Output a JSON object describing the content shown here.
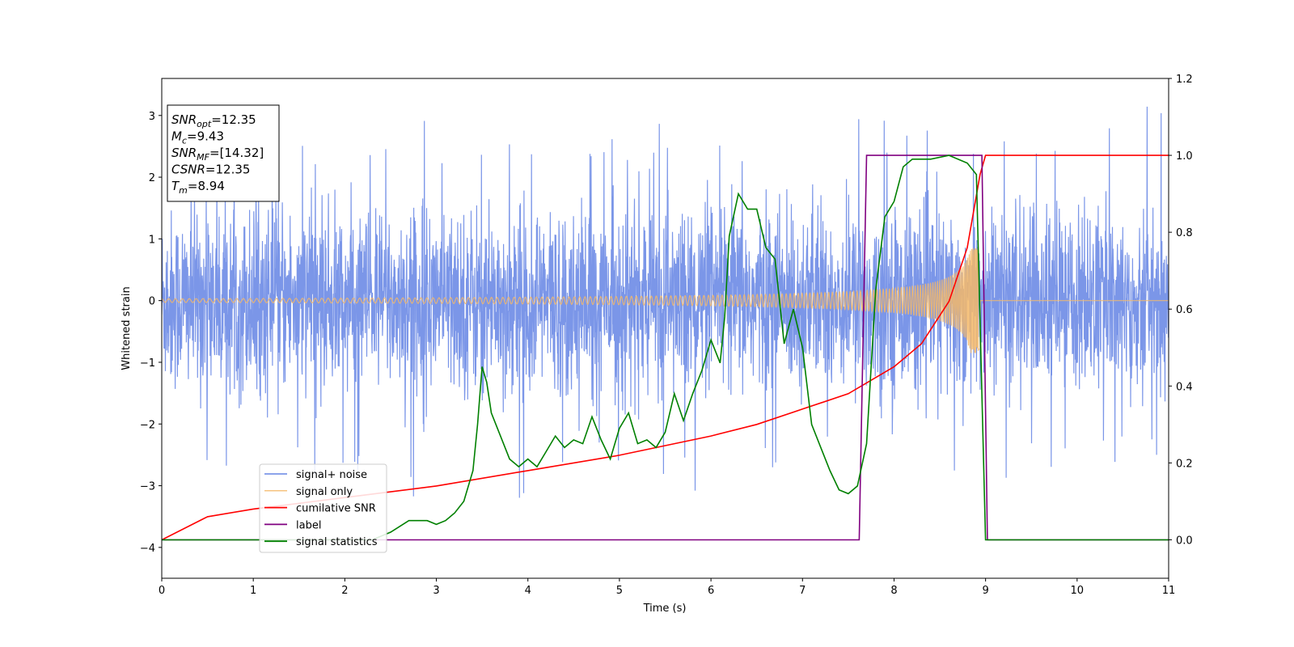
{
  "chart_data": {
    "type": "line",
    "xlabel": "Time (s)",
    "ylabel": "Whitened strain",
    "xlim": [
      0,
      11
    ],
    "ylim": [
      -4.5,
      3.6
    ],
    "y2lim": [
      -0.1,
      1.2
    ],
    "x_ticks": [
      "0",
      "1",
      "2",
      "3",
      "4",
      "5",
      "6",
      "7",
      "8",
      "9",
      "10",
      "11"
    ],
    "y_ticks": [
      "3",
      "2",
      "1",
      "0",
      "−1",
      "−2",
      "−3",
      "−4"
    ],
    "y2_ticks": [
      "1.2",
      "1.0",
      "0.8",
      "0.6",
      "0.4",
      "0.2",
      "0.0"
    ],
    "info_box": [
      {
        "base": "SNR",
        "sub": "opt",
        "value": "=12.35"
      },
      {
        "base": "M",
        "sub": "c",
        "value": "=9.43"
      },
      {
        "base": "SNR",
        "sub": "MF",
        "value": "=[14.32]"
      },
      {
        "base": "CSNR",
        "sub": "",
        "value": "=12.35"
      },
      {
        "base": "T",
        "sub": "m",
        "value": "=8.94"
      }
    ],
    "legend_placement": "lower-left",
    "series": [
      {
        "name": "signal+ noise",
        "color": "#7b96e8",
        "axis": "left",
        "description": "gaussian noise, amplitude ~1.6 with spikes up to ~3.2"
      },
      {
        "name": "signal only",
        "color": "#f5b968",
        "axis": "left",
        "chirp": {
          "start": 0,
          "end": 8.94,
          "amp_start": 0.03,
          "amp_end": 0.85
        }
      },
      {
        "name": "cumilative SNR",
        "color": "#ff0000",
        "axis": "right",
        "x": [
          0,
          0.5,
          1,
          2,
          3,
          4,
          5,
          6,
          6.5,
          7,
          7.5,
          8,
          8.3,
          8.6,
          8.8,
          8.94,
          9,
          11
        ],
        "y": [
          0.0,
          0.06,
          0.08,
          0.11,
          0.14,
          0.18,
          0.22,
          0.27,
          0.3,
          0.34,
          0.38,
          0.45,
          0.51,
          0.62,
          0.76,
          0.95,
          1.0,
          1.0
        ]
      },
      {
        "name": "label",
        "color": "#800080",
        "axis": "right",
        "x": [
          0,
          7.62,
          7.7,
          8.96,
          9.02,
          11
        ],
        "y": [
          0,
          0,
          1,
          1,
          0,
          0
        ]
      },
      {
        "name": "signal statistics",
        "color": "#008000",
        "axis": "right",
        "x": [
          0,
          0.5,
          1,
          1.5,
          2,
          2.3,
          2.5,
          2.7,
          2.9,
          3.0,
          3.1,
          3.2,
          3.3,
          3.4,
          3.45,
          3.5,
          3.55,
          3.6,
          3.7,
          3.8,
          3.9,
          4.0,
          4.1,
          4.2,
          4.3,
          4.4,
          4.5,
          4.6,
          4.7,
          4.8,
          4.9,
          5.0,
          5.1,
          5.2,
          5.3,
          5.4,
          5.5,
          5.6,
          5.7,
          5.8,
          5.9,
          6.0,
          6.1,
          6.15,
          6.2,
          6.3,
          6.4,
          6.5,
          6.6,
          6.7,
          6.8,
          6.9,
          7.0,
          7.1,
          7.2,
          7.3,
          7.4,
          7.5,
          7.6,
          7.7,
          7.8,
          7.9,
          8.0,
          8.1,
          8.2,
          8.4,
          8.6,
          8.8,
          8.9,
          9.0,
          9.5,
          10,
          11
        ],
        "y": [
          0.0,
          0.0,
          0.0,
          0.0,
          0.0,
          0.0,
          0.02,
          0.05,
          0.05,
          0.04,
          0.05,
          0.07,
          0.1,
          0.18,
          0.3,
          0.45,
          0.41,
          0.33,
          0.27,
          0.21,
          0.19,
          0.21,
          0.19,
          0.23,
          0.27,
          0.24,
          0.26,
          0.25,
          0.32,
          0.26,
          0.21,
          0.29,
          0.33,
          0.25,
          0.26,
          0.24,
          0.28,
          0.38,
          0.31,
          0.38,
          0.44,
          0.52,
          0.46,
          0.58,
          0.79,
          0.9,
          0.86,
          0.86,
          0.76,
          0.73,
          0.51,
          0.6,
          0.5,
          0.3,
          0.24,
          0.18,
          0.13,
          0.12,
          0.14,
          0.25,
          0.65,
          0.84,
          0.88,
          0.97,
          0.99,
          0.99,
          1.0,
          0.98,
          0.95,
          0.0,
          0.0,
          0.0,
          0.0
        ]
      }
    ]
  }
}
